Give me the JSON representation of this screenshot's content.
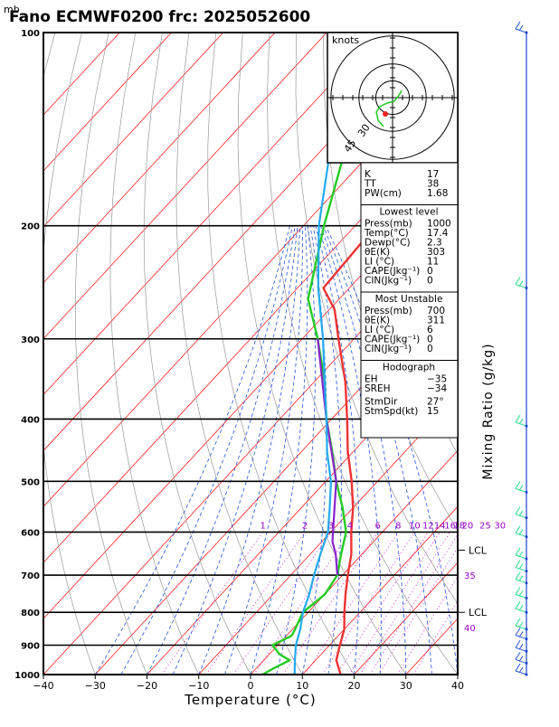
{
  "header": {
    "title": "Fano ECMWF0200  frc: 2025052600",
    "unit_top": "mb"
  },
  "colors": {
    "temperature": "#ee3333",
    "dewpoint": "#22cc22",
    "parcel": "#8822cc",
    "wetbulb": "#22aaee",
    "isotherm": "#ff0000",
    "dry_adiabat": "#999999",
    "moist_adiabat": "#2255dd",
    "mixing_ratio": "#cc00cc",
    "wind_barb": "#22dd88"
  },
  "chart_data": {
    "type": "line",
    "title": "Fano ECMWF0200  frc: 2025052600",
    "xlabel": "Temperature (°C)",
    "ylabel": "mb",
    "xlim": [
      -40,
      40
    ],
    "ylim": [
      1000,
      100
    ],
    "y_scale": "log",
    "x_ticks": [
      -40,
      -30,
      -20,
      -10,
      0,
      10,
      20,
      30,
      40
    ],
    "y_ticks": [
      100,
      200,
      300,
      400,
      500,
      600,
      700,
      800,
      900,
      1000
    ],
    "series": [
      {
        "key": "temperature",
        "pressure": [
          1000,
          950,
          900,
          850,
          800,
          750,
          700,
          650,
          600,
          550,
          500,
          450,
          400,
          350,
          300,
          270,
          250,
          200,
          150,
          100
        ],
        "values": [
          17.4,
          14,
          12,
          10,
          7,
          4,
          1,
          -2,
          -6,
          -10,
          -15,
          -21,
          -27,
          -34,
          -43,
          -49,
          -55,
          -56,
          -55,
          -52
        ]
      },
      {
        "key": "dewpoint",
        "pressure": [
          1000,
          975,
          950,
          930,
          900,
          870,
          850,
          800,
          750,
          700,
          650,
          600,
          550,
          500,
          450,
          400,
          350,
          300,
          260,
          200,
          150,
          100
        ],
        "values": [
          2.3,
          3.5,
          5,
          2,
          -1,
          1,
          0.5,
          -1,
          0,
          -1,
          -4,
          -7,
          -12,
          -18,
          -24,
          -31,
          -38,
          -47,
          -56,
          -66,
          -76,
          -86
        ]
      },
      {
        "key": "parcel",
        "pressure": [
          620,
          650,
          700,
          750,
          800,
          850,
          900,
          1000,
          300,
          400,
          500
        ],
        "values": [
          -8,
          -5,
          -1,
          null,
          null,
          null,
          null,
          null,
          -47,
          -31,
          -18
        ]
      },
      {
        "key": "wetbulb",
        "pressure": [
          1000,
          950,
          900,
          850,
          800,
          750,
          700,
          650,
          600,
          550,
          500,
          450,
          400,
          350,
          300,
          250,
          200,
          150,
          120
        ],
        "values": [
          8.5,
          6,
          3.5,
          1.5,
          -1,
          -3,
          -5.5,
          -8,
          -10.5,
          -14.5,
          -19,
          -25,
          -31,
          -38,
          -46,
          -56,
          -67,
          -79,
          -87
        ]
      }
    ],
    "mixing_ratio_labels": [
      "1",
      "2",
      "3",
      "4",
      "6",
      "8",
      "10",
      "12",
      "14",
      "16",
      "18",
      "20",
      "25",
      "30"
    ],
    "right_axis_label": "Mixing Ratio  (g/kg)",
    "right_markers": [
      {
        "text": "LCL",
        "pressure": 640
      },
      {
        "text": "LCL",
        "pressure": 800
      },
      {
        "text": "35",
        "pressure": 700,
        "color": "purple"
      },
      {
        "text": "40",
        "pressure": 845,
        "color": "purple"
      }
    ],
    "hodograph": {
      "unit": "knots",
      "rings": [
        15,
        30,
        45
      ],
      "ring_labels": [
        "30",
        "45"
      ]
    }
  },
  "stats": {
    "top": [
      {
        "label": "K",
        "value": "17"
      },
      {
        "label": "TT",
        "value": "38"
      },
      {
        "label": "PW(cm)",
        "value": "1.68"
      }
    ],
    "lowest": {
      "header": "Lowest level",
      "rows": [
        {
          "label": "Press(mb)",
          "value": "1000"
        },
        {
          "label": "Temp(°C)",
          "value": "17.4"
        },
        {
          "label": "Dewp(°C)",
          "value": "2.3"
        },
        {
          "label": "θE(K)",
          "value": "303"
        },
        {
          "label": "LI  (°C)",
          "value": "11"
        },
        {
          "label": "CAPE(Jkg⁻¹)",
          "value": "0"
        },
        {
          "label": "CIN(Jkg⁻¹)",
          "value": "0"
        }
      ]
    },
    "unstable": {
      "header": "Most Unstable",
      "rows": [
        {
          "label": "Press(mb)",
          "value": "700"
        },
        {
          "label": "θE(K)",
          "value": "311"
        },
        {
          "label": "LI  (°C)",
          "value": "6"
        },
        {
          "label": "CAPE(Jkg⁻¹)",
          "value": "0"
        },
        {
          "label": "CIN(Jkg⁻¹)",
          "value": "0"
        }
      ]
    },
    "hodo": {
      "header": "Hodograph",
      "rows": [
        {
          "label": "EH",
          "value": "−35"
        },
        {
          "label": "SREH",
          "value": "−34"
        }
      ]
    },
    "storm": {
      "rows": [
        {
          "label": "StmDir",
          "value": "27°"
        },
        {
          "label": "StmSpd(kt)",
          "value": "15"
        }
      ]
    }
  }
}
